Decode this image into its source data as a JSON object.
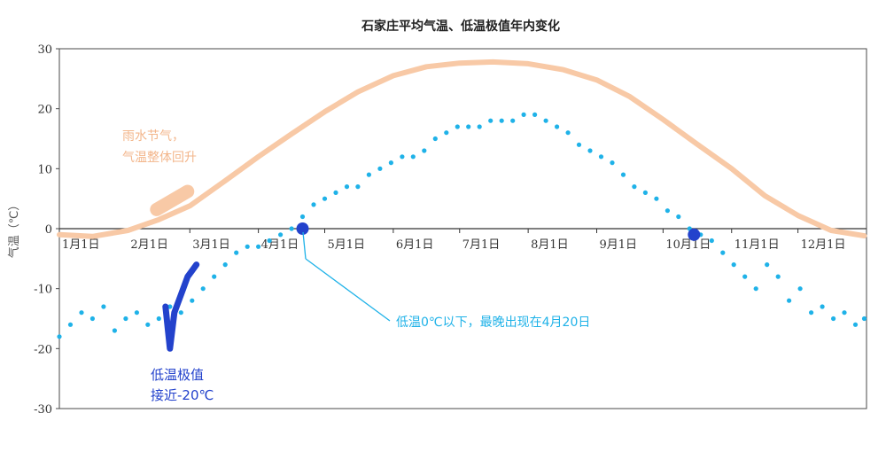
{
  "chart_data": {
    "type": "line",
    "title": "石家庄平均气温、低温极值年内变化",
    "ylabel": "气温（℃）",
    "xlabel": "",
    "ylim": [
      -30,
      30
    ],
    "yticks": [
      "30",
      "20",
      "10",
      "0",
      "-10",
      "-20",
      "-30"
    ],
    "x_range_days": [
      0,
      365
    ],
    "months": [
      {
        "label": "1月1日",
        "day": 0
      },
      {
        "label": "2月1日",
        "day": 31
      },
      {
        "label": "3月1日",
        "day": 59
      },
      {
        "label": "4月1日",
        "day": 90
      },
      {
        "label": "5月1日",
        "day": 120
      },
      {
        "label": "6月1日",
        "day": 151
      },
      {
        "label": "7月1日",
        "day": 181
      },
      {
        "label": "8月1日",
        "day": 212
      },
      {
        "label": "9月1日",
        "day": 243
      },
      {
        "label": "10月1日",
        "day": 273
      },
      {
        "label": "11月1日",
        "day": 304
      },
      {
        "label": "12月1日",
        "day": 334
      }
    ],
    "series": [
      {
        "kind": "mean-curve",
        "color": "#f8c9a6",
        "x": [
          0,
          15,
          31,
          45,
          59,
          75,
          90,
          105,
          120,
          135,
          151,
          166,
          181,
          196,
          212,
          228,
          243,
          258,
          273,
          288,
          304,
          319,
          334,
          349,
          364
        ],
        "y": [
          -1,
          -1.3,
          -0.3,
          1.5,
          3.8,
          8.0,
          12.0,
          15.8,
          19.5,
          22.8,
          25.5,
          27.0,
          27.6,
          27.8,
          27.5,
          26.5,
          24.8,
          22.0,
          18.2,
          14.2,
          10.0,
          5.5,
          2.2,
          -0.3,
          -1.2
        ]
      },
      {
        "kind": "low-extreme-scatter",
        "color": "#1fb2e8",
        "x": [
          0,
          5,
          10,
          15,
          20,
          25,
          30,
          35,
          40,
          45,
          50,
          55,
          60,
          65,
          70,
          75,
          80,
          85,
          90,
          95,
          100,
          105,
          110,
          115,
          120,
          125,
          130,
          135,
          140,
          145,
          150,
          155,
          160,
          165,
          170,
          175,
          180,
          185,
          190,
          195,
          200,
          205,
          210,
          215,
          220,
          225,
          230,
          235,
          240,
          245,
          250,
          255,
          260,
          265,
          270,
          275,
          280,
          285,
          290,
          295,
          300,
          305,
          310,
          315,
          320,
          325,
          330,
          335,
          340,
          345,
          350,
          355,
          360,
          364
        ],
        "y": [
          -18,
          -16,
          -14,
          -15,
          -13,
          -17,
          -15,
          -14,
          -16,
          -15,
          -13,
          -14,
          -12,
          -10,
          -8,
          -6,
          -4,
          -3,
          -3,
          -2,
          -1,
          0,
          2,
          4,
          5,
          6,
          7,
          7,
          9,
          10,
          11,
          12,
          12,
          13,
          15,
          16,
          17,
          17,
          17,
          18,
          18,
          18,
          19,
          19,
          18,
          17,
          16,
          14,
          13,
          12,
          11,
          9,
          7,
          6,
          5,
          3,
          2,
          0,
          -1,
          -2,
          -4,
          -6,
          -8,
          -10,
          -6,
          -8,
          -12,
          -10,
          -14,
          -13,
          -15,
          -14,
          -16,
          -15
        ]
      },
      {
        "kind": "highlight-low-extreme",
        "color": "#2342cc",
        "x": [
          48,
          50,
          52,
          54,
          56,
          58,
          60,
          62
        ],
        "y": [
          -13,
          -20,
          -14,
          -12,
          -10,
          -8,
          -7,
          -6
        ]
      }
    ],
    "markers": [
      {
        "name": "last-freeze-marker",
        "day": 110,
        "value": 0,
        "color": "#2342cc"
      },
      {
        "name": "first-freeze-marker",
        "day": 287,
        "value": -1,
        "color": "#2342cc"
      }
    ],
    "annotations": {
      "rain_water_line1": "雨水节气，",
      "rain_water_line2": "气温整体回升",
      "low_extreme_line1": "低温极值",
      "low_extreme_line2": "接近-20℃",
      "last_freeze": "低温0℃以下，最晚出现在4月20日"
    }
  }
}
